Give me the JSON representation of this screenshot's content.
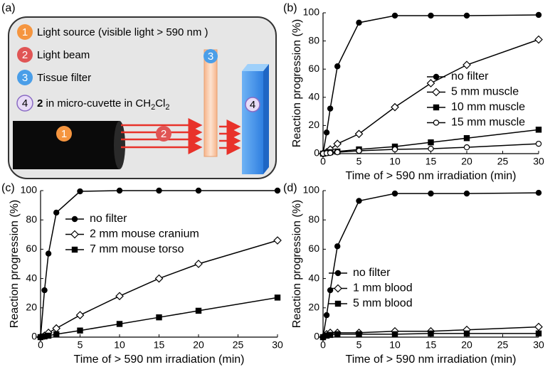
{
  "panel_a": {
    "panel_label": "(a)",
    "items": [
      {
        "number": "1",
        "text": "Light source (visible light > 590 nm )"
      },
      {
        "number": "2",
        "text": "Light beam"
      },
      {
        "number": "3",
        "text": "Tissue filter"
      },
      {
        "number": "4",
        "compound": "2",
        "text": "in micro-cuvette in CH",
        "sub1": "2",
        "text2": "Cl",
        "sub2": "2"
      }
    ]
  },
  "chart_data": [
    {
      "type": "line",
      "panel_label": "(b)",
      "xlabel": "Time of > 590 nm irradiation (min)",
      "ylabel": "Reaction progression (%)",
      "x": [
        0,
        0.5,
        1,
        2,
        5,
        10,
        15,
        20,
        30
      ],
      "xlim": [
        0,
        30
      ],
      "xticks": [
        0,
        5,
        10,
        15,
        20,
        25,
        30
      ],
      "ylim": [
        0,
        100
      ],
      "yticks": [
        0,
        20,
        40,
        60,
        80,
        100
      ],
      "legend_loc": "center right",
      "series": [
        {
          "name": "no filter",
          "color": "#000000",
          "marker": "filled-circle",
          "values": [
            0,
            15,
            32,
            62,
            93,
            98,
            98,
            98,
            98.5
          ]
        },
        {
          "name": "5 mm muscle",
          "color": "#000000",
          "marker": "open-diamond",
          "values": [
            0,
            1,
            3,
            7,
            14,
            33,
            50,
            63,
            81
          ]
        },
        {
          "name": "10 mm muscle",
          "color": "#000000",
          "marker": "filled-square",
          "values": [
            0,
            0.5,
            1,
            1.5,
            3,
            5,
            8,
            11,
            17
          ]
        },
        {
          "name": "15 mm muscle",
          "color": "#000000",
          "marker": "open-circle",
          "values": [
            0,
            0.3,
            0.5,
            1,
            2,
            3,
            3.5,
            4.5,
            7
          ]
        }
      ]
    },
    {
      "type": "line",
      "panel_label": "(c)",
      "xlabel": "Time of > 590 nm irradiation (min)",
      "ylabel": "Reaction progression (%)",
      "x": [
        0,
        0.5,
        1,
        2,
        5,
        10,
        15,
        20,
        30
      ],
      "xlim": [
        0,
        30
      ],
      "xticks": [
        0,
        5,
        10,
        15,
        20,
        25,
        30
      ],
      "ylim": [
        0,
        100
      ],
      "yticks": [
        0,
        20,
        40,
        60,
        80,
        100
      ],
      "legend_loc": "upper left",
      "series": [
        {
          "name": "no filter",
          "color": "#000000",
          "marker": "filled-circle",
          "values": [
            0,
            32,
            57,
            85,
            99.5,
            100,
            100,
            100,
            100
          ]
        },
        {
          "name": "2 mm mouse cranium",
          "color": "#000000",
          "marker": "open-diamond",
          "values": [
            0,
            1,
            3,
            6,
            15,
            28,
            40,
            50,
            66
          ]
        },
        {
          "name": "7 mm mouse torso",
          "color": "#000000",
          "marker": "filled-square",
          "values": [
            0,
            0.5,
            1,
            2,
            4.5,
            9,
            13.5,
            18,
            27
          ]
        }
      ]
    },
    {
      "type": "line",
      "panel_label": "(d)",
      "xlabel": "Time of > 590 nm irradiation (min)",
      "ylabel": "Reaction progression (%)",
      "x": [
        0,
        0.5,
        1,
        2,
        5,
        10,
        15,
        20,
        30
      ],
      "xlim": [
        0,
        30
      ],
      "xticks": [
        0,
        5,
        10,
        15,
        20,
        25,
        30
      ],
      "ylim": [
        0,
        100
      ],
      "yticks": [
        0,
        20,
        40,
        60,
        80,
        100
      ],
      "legend_loc": "lower left",
      "series": [
        {
          "name": "no filter",
          "color": "#000000",
          "marker": "filled-circle",
          "values": [
            0,
            15,
            32,
            62,
            93,
            98,
            98,
            98,
            98.5
          ]
        },
        {
          "name": "1 mm blood",
          "color": "#000000",
          "marker": "open-diamond",
          "values": [
            0,
            2,
            3,
            3,
            3,
            4,
            4,
            5,
            7
          ]
        },
        {
          "name": "5 mm blood",
          "color": "#000000",
          "marker": "filled-square",
          "values": [
            0,
            1,
            1.5,
            2,
            2,
            2,
            2.5,
            2.5,
            2.5
          ]
        }
      ]
    }
  ]
}
